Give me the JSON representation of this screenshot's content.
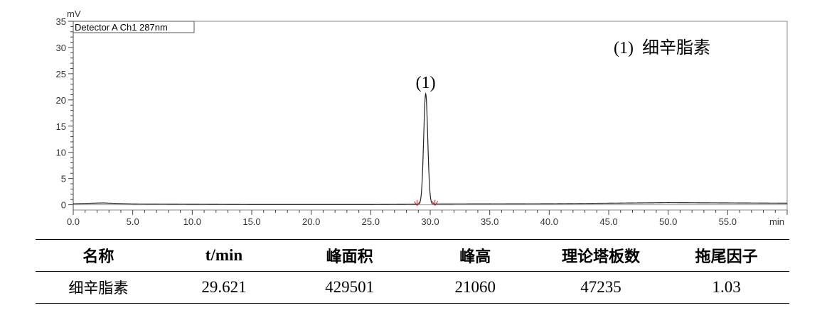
{
  "chart_data": {
    "type": "line",
    "detector_label": "Detector A Ch1 287nm",
    "y_unit": "mV",
    "x_unit": "min",
    "xlim": [
      0,
      60
    ],
    "ylim": [
      -1,
      35
    ],
    "x_ticks": [
      "0.0",
      "5.0",
      "10.0",
      "15.0",
      "20.0",
      "25.0",
      "30.0",
      "35.0",
      "40.0",
      "45.0",
      "50.0",
      "55.0"
    ],
    "y_ticks": [
      "0",
      "5",
      "10",
      "15",
      "20",
      "25",
      "30",
      "35"
    ],
    "legend_text": "(1)  细辛脂素",
    "peak_label": "(1)",
    "peak": {
      "time": 29.621,
      "height_mV": 21.06
    },
    "baseline": [
      [
        0,
        0.2
      ],
      [
        2.5,
        0.35
      ],
      [
        5,
        0.15
      ],
      [
        15,
        0.05
      ],
      [
        25,
        0.05
      ],
      [
        28.9,
        0.1
      ],
      [
        31,
        0.15
      ],
      [
        40,
        0.2
      ],
      [
        50,
        0.4
      ],
      [
        55,
        0.35
      ],
      [
        60,
        0.3
      ]
    ],
    "integration_marks": [
      28.9,
      30.4
    ],
    "grid": false
  },
  "table": {
    "headers": [
      "名称",
      "t/min",
      "峰面积",
      "峰高",
      "理论塔板数",
      "拖尾因子"
    ],
    "row": [
      "细辛脂素",
      "29.621",
      "429501",
      "21060",
      "47235",
      "1.03"
    ]
  }
}
